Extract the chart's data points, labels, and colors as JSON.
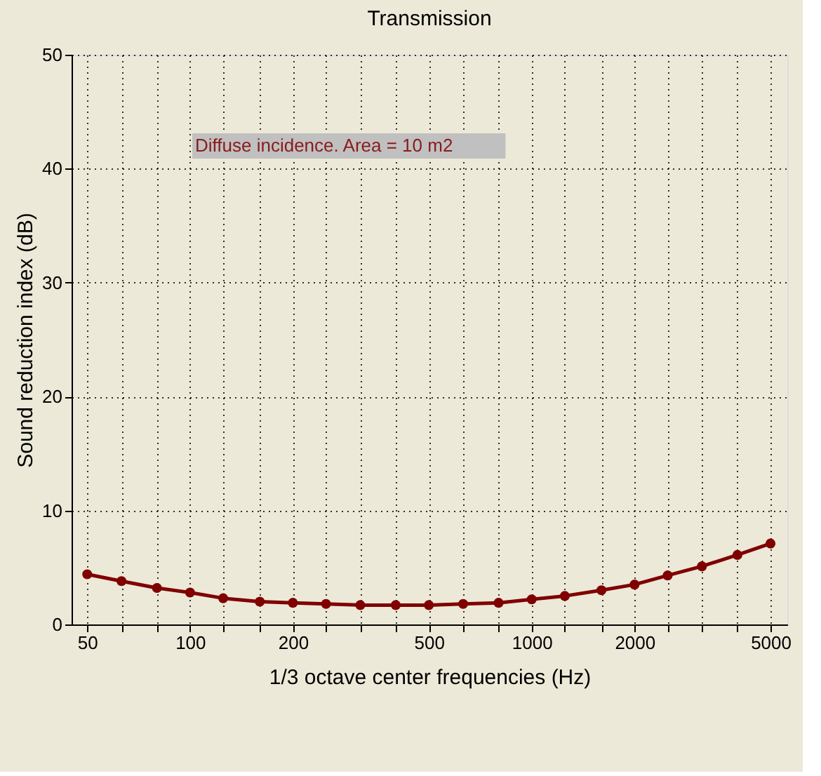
{
  "chart_data": {
    "type": "line",
    "title": "Transmission",
    "xlabel": "1/3 octave center frequencies (Hz)",
    "ylabel": "Sound reduction index (dB)",
    "x": [
      50,
      63,
      80,
      100,
      125,
      160,
      200,
      250,
      315,
      400,
      500,
      630,
      800,
      1000,
      1250,
      1600,
      2000,
      2500,
      3150,
      4000,
      5000
    ],
    "series": [
      {
        "color": "#800000",
        "values": [
          4.4,
          3.8,
          3.2,
          2.8,
          2.3,
          2.0,
          1.9,
          1.8,
          1.7,
          1.7,
          1.7,
          1.8,
          1.9,
          2.2,
          2.5,
          3.0,
          3.5,
          4.3,
          5.1,
          6.1,
          7.1
        ]
      }
    ],
    "log": "x",
    "xlim": [
      45,
      5600
    ],
    "ylim": [
      0,
      50
    ],
    "xticks": [
      50,
      {
        "value": 63,
        "label": null
      },
      {
        "value": 80,
        "label": null
      },
      100,
      {
        "value": 125,
        "label": null
      },
      {
        "value": 160,
        "label": null
      },
      200,
      {
        "value": 250,
        "label": null
      },
      {
        "value": 315,
        "label": null
      },
      {
        "value": 400,
        "label": null
      },
      500,
      {
        "value": 630,
        "label": null
      },
      {
        "value": 800,
        "label": null
      },
      1000,
      {
        "value": 1250,
        "label": null
      },
      {
        "value": 1600,
        "label": null
      },
      2000,
      {
        "value": 2500,
        "label": null
      },
      {
        "value": 3150,
        "label": null
      },
      {
        "value": 4000,
        "label": null
      },
      5000
    ],
    "yticks": [
      0,
      10,
      20,
      30,
      40,
      50
    ],
    "grid": true,
    "legend": false,
    "marker": "circle",
    "line_style": "solid",
    "annotations": [
      "Diffuse incidence. Area = 10 m2"
    ]
  }
}
